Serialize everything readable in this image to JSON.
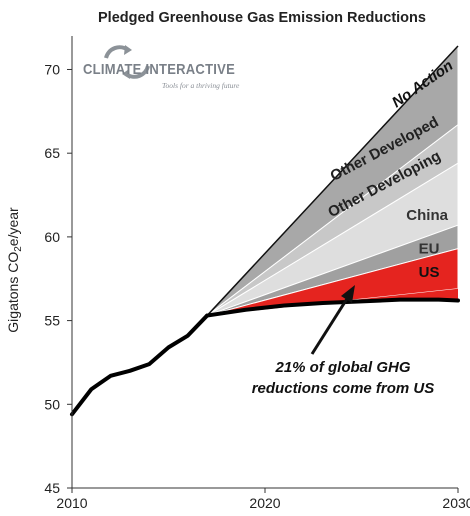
{
  "chart_data": {
    "type": "area",
    "title": "Pledged Greenhouse Gas Emission Reductions",
    "ylabel": "Gigatons CO₂e/year",
    "xlabel": "",
    "xlim": [
      2010,
      2030
    ],
    "ylim": [
      45,
      72
    ],
    "x_ticks": [
      "2010",
      "2020",
      "2030"
    ],
    "y_ticks": [
      "45",
      "50",
      "55",
      "60",
      "65",
      "70"
    ],
    "history": {
      "x": [
        2010,
        2011,
        2012,
        2013,
        2014,
        2015,
        2016,
        2017
      ],
      "y": [
        49.4,
        50.9,
        51.7,
        52.0,
        52.4,
        53.4,
        54.1,
        55.3
      ]
    },
    "projection_x": [
      2017,
      2030
    ],
    "series": [
      {
        "name": "No Action",
        "values": [
          55.3,
          71.4
        ]
      },
      {
        "name": "Other Developed",
        "values": [
          55.3,
          66.7
        ]
      },
      {
        "name": "Other Developing",
        "values": [
          55.3,
          64.4
        ]
      },
      {
        "name": "China",
        "values": [
          55.3,
          60.7
        ]
      },
      {
        "name": "EU",
        "values": [
          55.3,
          59.3
        ]
      },
      {
        "name": "US",
        "values": [
          55.3,
          56.9
        ]
      }
    ],
    "pledged_path": {
      "x": [
        2017,
        2019,
        2021,
        2023,
        2025,
        2027,
        2029,
        2030
      ],
      "y": [
        55.3,
        55.65,
        55.9,
        56.05,
        56.15,
        56.25,
        56.25,
        56.2
      ]
    },
    "band_colors": {
      "Other Developed": "#a8a8a8",
      "Other Developing": "#c8c8c8",
      "China": "#dedede",
      "EU": "#a0a0a0",
      "US": "#e5241f"
    },
    "annotation": [
      "21% of global GHG",
      "reductions come from US"
    ],
    "grid": false,
    "logo": {
      "name": "CLIMATE INTERACTIVE",
      "tagline": "Tools for a thriving future"
    }
  }
}
